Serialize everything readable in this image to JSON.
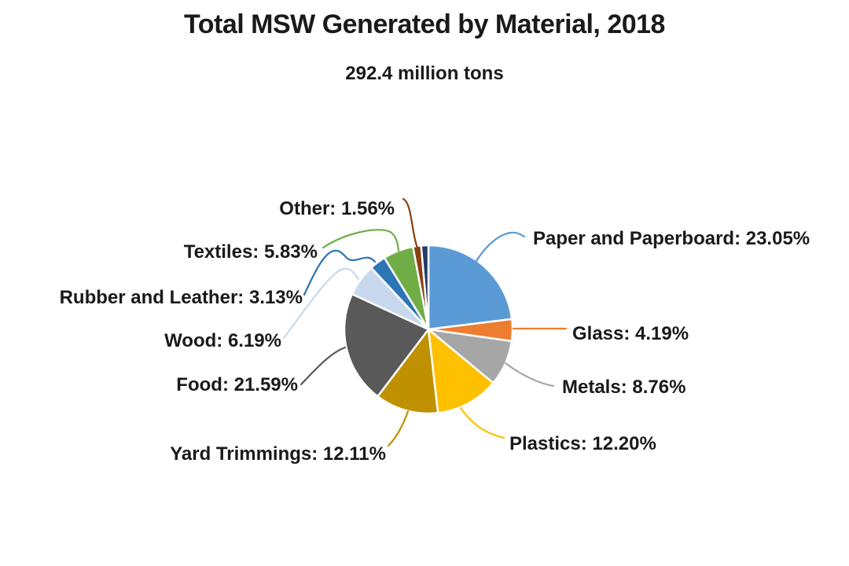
{
  "title": "Total MSW Generated by Material, 2018",
  "subtitle": "292.4 million tons",
  "chart_data": {
    "type": "pie",
    "title": "Total MSW Generated by Material, 2018",
    "subtitle": "292.4 million tons",
    "total_label": "292.4 million tons",
    "unit": "percent",
    "start_angle": "12 o'clock",
    "direction": "clockwise",
    "legend": "none (leader-line callouts)",
    "segments": [
      {
        "label": "Paper and Paperboard",
        "value": 23.05,
        "pct_text": "23.05%",
        "color": "#5B9BD5",
        "callout": "Paper and Paperboard: 23.05%"
      },
      {
        "label": "Glass",
        "value": 4.19,
        "pct_text": "4.19%",
        "color": "#ED7D31",
        "callout": "Glass: 4.19%"
      },
      {
        "label": "Metals",
        "value": 8.76,
        "pct_text": "8.76%",
        "color": "#A6A6A6",
        "callout": "Metals: 8.76%"
      },
      {
        "label": "Plastics",
        "value": 12.2,
        "pct_text": "12.20%",
        "color": "#FFC000",
        "callout": "Plastics: 12.20%"
      },
      {
        "label": "Yard Trimmings",
        "value": 12.11,
        "pct_text": "12.11%",
        "color": "#BF9000",
        "callout": "Yard Trimmings: 12.11%"
      },
      {
        "label": "Food",
        "value": 21.59,
        "pct_text": "21.59%",
        "color": "#595959",
        "callout": "Food: 21.59%"
      },
      {
        "label": "Wood",
        "value": 6.19,
        "pct_text": "6.19%",
        "color": "#C9D9ED",
        "callout": "Wood: 6.19%"
      },
      {
        "label": "Rubber and Leather",
        "value": 3.13,
        "pct_text": "3.13%",
        "color": "#2E75B6",
        "callout": "Rubber and Leather: 3.13%"
      },
      {
        "label": "Textiles",
        "value": 5.83,
        "pct_text": "5.83%",
        "color": "#70AD47",
        "callout": "Textiles: 5.83%"
      },
      {
        "label": "Other",
        "value": 1.56,
        "pct_text": "1.56%",
        "color": "#8A4012",
        "callout": "Other: 1.56%"
      },
      {
        "label": "",
        "value": 1.39,
        "pct_text": "",
        "color": "#243A68",
        "callout": ""
      }
    ]
  }
}
